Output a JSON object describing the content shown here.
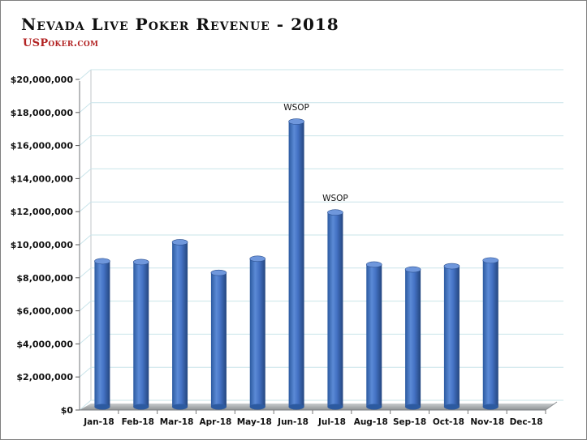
{
  "chart_data": {
    "type": "bar",
    "title": "Nevada Live Poker Revenue - 2018",
    "subtitle": "USPoker.com",
    "xlabel": "",
    "ylabel": "",
    "categories": [
      "Jan-18",
      "Feb-18",
      "Mar-18",
      "Apr-18",
      "May-18",
      "Jun-18",
      "Jul-18",
      "Aug-18",
      "Sep-18",
      "Oct-18",
      "Nov-18",
      "Dec-18"
    ],
    "values": [
      9000000,
      8950000,
      10150000,
      8300000,
      9150000,
      17450000,
      11950000,
      8800000,
      8500000,
      8700000,
      9050000,
      null
    ],
    "yticks": [
      "$0",
      "$2,000,000",
      "$4,000,000",
      "$6,000,000",
      "$8,000,000",
      "$10,000,000",
      "$12,000,000",
      "$14,000,000",
      "$16,000,000",
      "$18,000,000",
      "$20,000,000"
    ],
    "ylim": [
      0,
      20000000
    ],
    "grid": true,
    "legend": "none",
    "annotations": [
      {
        "category": "Jun-18",
        "text": "WSOP"
      },
      {
        "category": "Jul-18",
        "text": "WSOP"
      }
    ],
    "colors": {
      "bar": "#4472c4",
      "bar_dark": "#2a4f8f",
      "bar_light": "#7aa0e0",
      "grid": "#c9e4ea",
      "wall": "#9fa3a6"
    }
  }
}
